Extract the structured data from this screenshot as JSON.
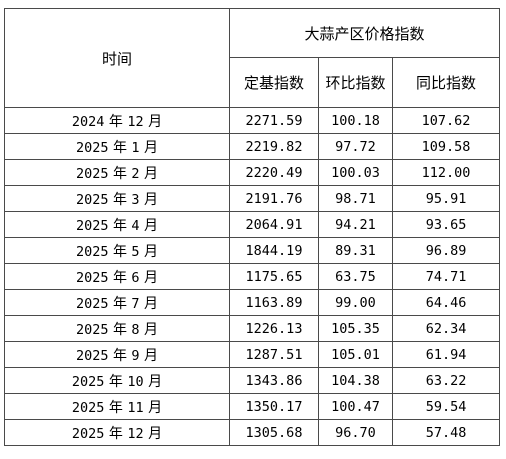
{
  "table": {
    "header": {
      "time": "时间",
      "group": "大蒜产区价格指数",
      "columns": [
        "定基指数",
        "环比指数",
        "同比指数"
      ]
    },
    "rows": [
      {
        "year": "2024",
        "year_unit": "年",
        "month": "12",
        "month_unit": "月",
        "base": "2271.59",
        "mom": "100.18",
        "yoy": "107.62"
      },
      {
        "year": "2025",
        "year_unit": "年",
        "month": "1",
        "month_unit": "月",
        "base": "2219.82",
        "mom": "97.72",
        "yoy": "109.58"
      },
      {
        "year": "2025",
        "year_unit": "年",
        "month": "2",
        "month_unit": "月",
        "base": "2220.49",
        "mom": "100.03",
        "yoy": "112.00"
      },
      {
        "year": "2025",
        "year_unit": "年",
        "month": "3",
        "month_unit": "月",
        "base": "2191.76",
        "mom": "98.71",
        "yoy": "95.91"
      },
      {
        "year": "2025",
        "year_unit": "年",
        "month": "4",
        "month_unit": "月",
        "base": "2064.91",
        "mom": "94.21",
        "yoy": "93.65"
      },
      {
        "year": "2025",
        "year_unit": "年",
        "month": "5",
        "month_unit": "月",
        "base": "1844.19",
        "mom": "89.31",
        "yoy": "96.89"
      },
      {
        "year": "2025",
        "year_unit": "年",
        "month": "6",
        "month_unit": "月",
        "base": "1175.65",
        "mom": "63.75",
        "yoy": "74.71"
      },
      {
        "year": "2025",
        "year_unit": "年",
        "month": "7",
        "month_unit": "月",
        "base": "1163.89",
        "mom": "99.00",
        "yoy": "64.46"
      },
      {
        "year": "2025",
        "year_unit": "年",
        "month": "8",
        "month_unit": "月",
        "base": "1226.13",
        "mom": "105.35",
        "yoy": "62.34"
      },
      {
        "year": "2025",
        "year_unit": "年",
        "month": "9",
        "month_unit": "月",
        "base": "1287.51",
        "mom": "105.01",
        "yoy": "61.94"
      },
      {
        "year": "2025",
        "year_unit": "年",
        "month": "10",
        "month_unit": "月",
        "base": "1343.86",
        "mom": "104.38",
        "yoy": "63.22"
      },
      {
        "year": "2025",
        "year_unit": "年",
        "month": "11",
        "month_unit": "月",
        "base": "1350.17",
        "mom": "100.47",
        "yoy": "59.54"
      },
      {
        "year": "2025",
        "year_unit": "年",
        "month": "12",
        "month_unit": "月",
        "base": "1305.68",
        "mom": "96.70",
        "yoy": "57.48"
      }
    ]
  }
}
